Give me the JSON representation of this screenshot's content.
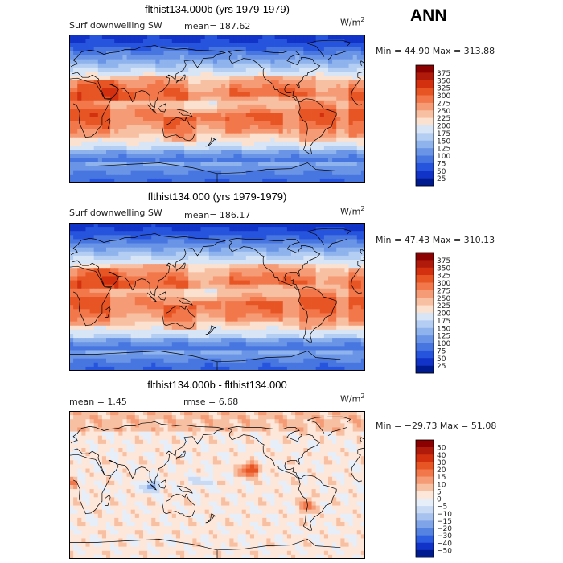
{
  "season": "ANN",
  "panels": [
    {
      "title": "flthist134.000b (yrs 1979-1979)",
      "variable": "Surf downwelling SW",
      "stat1": "mean= 187.62",
      "stat2": "",
      "units_base": "W/m",
      "units_exp": "2",
      "minmax": "Min =  44.90 Max = 313.88"
    },
    {
      "title": "flthist134.000 (yrs 1979-1979)",
      "variable": "Surf downwelling SW",
      "stat1": "mean= 186.17",
      "stat2": "",
      "units_base": "W/m",
      "units_exp": "2",
      "minmax": "Min =  47.43 Max = 310.13"
    },
    {
      "title": "flthist134.000b - flthist134.000",
      "variable": "",
      "stat1": "mean =    1.45",
      "stat2": "rmse =    6.68",
      "units_base": "W/m",
      "units_exp": "2",
      "minmax": "Min = −29.73 Max =  51.08"
    }
  ],
  "chart_data": [
    {
      "type": "heatmap",
      "title": "flthist134.000b (yrs 1979-1979)",
      "subtitle": "Surf downwelling SW",
      "mean": 187.62,
      "min": 44.9,
      "max": 313.88,
      "units": "W/m2",
      "colorbar_levels": [
        "375",
        "350",
        "325",
        "300",
        "275",
        "250",
        "225",
        "200",
        "175",
        "150",
        "125",
        "100",
        "75",
        "50",
        "25"
      ],
      "colorbar_colors": [
        "#8b0000",
        "#b01a0a",
        "#d2300f",
        "#e85525",
        "#f2784b",
        "#f59c76",
        "#f8c0a2",
        "#fbe1d0",
        "#d7e5f7",
        "#b4cdf2",
        "#8fb3ec",
        "#6a95e6",
        "#4876e0",
        "#2754dd",
        "#1133c7",
        "#001a90"
      ]
    },
    {
      "type": "heatmap",
      "title": "flthist134.000 (yrs 1979-1979)",
      "subtitle": "Surf downwelling SW",
      "mean": 186.17,
      "min": 47.43,
      "max": 310.13,
      "units": "W/m2",
      "colorbar_levels": [
        "375",
        "350",
        "325",
        "300",
        "275",
        "250",
        "225",
        "200",
        "175",
        "150",
        "125",
        "100",
        "75",
        "50",
        "25"
      ],
      "colorbar_colors": [
        "#8b0000",
        "#b01a0a",
        "#d2300f",
        "#e85525",
        "#f2784b",
        "#f59c76",
        "#f8c0a2",
        "#fbe1d0",
        "#d7e5f7",
        "#b4cdf2",
        "#8fb3ec",
        "#6a95e6",
        "#4876e0",
        "#2754dd",
        "#1133c7",
        "#001a90"
      ]
    },
    {
      "type": "heatmap",
      "title": "flthist134.000b - flthist134.000",
      "mean": 1.45,
      "rmse": 6.68,
      "min": -29.73,
      "max": 51.08,
      "units": "W/m2",
      "colorbar_levels": [
        "50",
        "40",
        "30",
        "20",
        "15",
        "10",
        "5",
        "0",
        "−5",
        "−10",
        "−15",
        "−20",
        "−30",
        "−40",
        "−50"
      ],
      "colorbar_colors": [
        "#8b0000",
        "#b01a0a",
        "#d2300f",
        "#e85525",
        "#f2784b",
        "#f59c76",
        "#f8c0a2",
        "#fde7db",
        "#e6eefa",
        "#c9daf5",
        "#a7c2ef",
        "#7fa4e8",
        "#5583e2",
        "#2d5de0",
        "#1133c7",
        "#001a90"
      ]
    }
  ]
}
